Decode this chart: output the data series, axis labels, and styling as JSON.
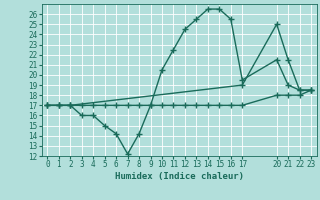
{
  "xlabel": "Humidex (Indice chaleur)",
  "bg_color": "#b2dfdb",
  "line_color": "#1a6b5a",
  "grid_color": "#ffffff",
  "xlim": [
    -0.5,
    23.5
  ],
  "ylim": [
    12,
    27
  ],
  "xtick_positions": [
    0,
    1,
    2,
    3,
    4,
    5,
    6,
    7,
    8,
    9,
    10,
    11,
    12,
    13,
    14,
    15,
    16,
    17,
    20,
    21,
    22,
    23
  ],
  "xtick_labels": [
    "0",
    "1",
    "2",
    "3",
    "4",
    "5",
    "6",
    "7",
    "8",
    "9",
    "10",
    "11",
    "12",
    "13",
    "14",
    "15",
    "16",
    "17",
    "20",
    "21",
    "22",
    "23"
  ],
  "yticks": [
    12,
    13,
    14,
    15,
    16,
    17,
    18,
    19,
    20,
    21,
    22,
    23,
    24,
    25,
    26
  ],
  "line1_x": [
    0,
    1,
    2,
    3,
    4,
    5,
    6,
    7,
    8,
    9,
    10,
    11,
    12,
    13,
    14,
    15,
    16,
    17,
    20,
    21,
    22,
    23
  ],
  "line1_y": [
    17,
    17,
    17,
    17,
    17,
    17,
    17,
    17,
    17,
    17,
    17,
    17,
    17,
    17,
    17,
    17,
    17,
    17,
    18,
    18,
    18,
    18.5
  ],
  "line2_x": [
    0,
    1,
    2,
    3,
    4,
    5,
    6,
    7,
    8,
    9,
    10,
    11,
    12,
    13,
    14,
    15,
    16,
    17,
    20,
    21,
    22,
    23
  ],
  "line2_y": [
    17,
    17,
    17,
    16,
    16,
    15,
    14.2,
    12.2,
    14.2,
    17,
    20.5,
    22.5,
    24.5,
    25.5,
    26.5,
    26.5,
    25.5,
    19.5,
    21.5,
    19,
    18.5,
    18.5
  ],
  "line3_x": [
    0,
    1,
    2,
    17,
    20,
    21,
    22,
    23
  ],
  "line3_y": [
    17,
    17,
    17,
    19,
    25,
    21.5,
    18.5,
    18.5
  ],
  "marker": "+",
  "markersize": 4,
  "markeredgewidth": 1.0,
  "linewidth": 1.0,
  "tick_fontsize": 5.5,
  "label_fontsize": 6.5
}
